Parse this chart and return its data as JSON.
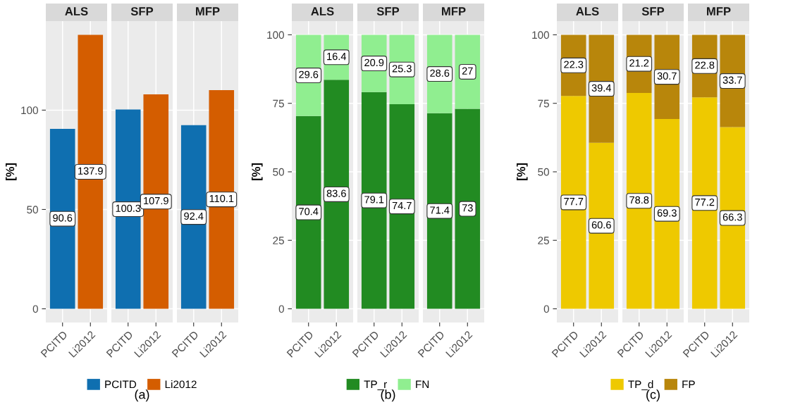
{
  "chart_data": [
    {
      "type": "bar",
      "title": "ALS",
      "ylabel": "[%]",
      "categories": [
        "PCITD",
        "Li2012"
      ],
      "ylim": [
        -6.9,
        144.8
      ],
      "yticks": [
        0,
        50,
        100
      ],
      "grid": true,
      "data_labels": true,
      "series": [
        {
          "color": "#0f6fb0",
          "values": [
            90.6,
            null
          ]
        },
        {
          "color": "#d45d00",
          "values": [
            null,
            137.9
          ]
        }
      ]
    },
    {
      "type": "bar",
      "title": "SFP",
      "categories": [
        "PCITD",
        "Li2012"
      ],
      "ylim": [
        -6.9,
        144.8
      ],
      "yticks": [
        0,
        50,
        100
      ],
      "tick_labels": "x",
      "grid": true,
      "data_labels": true,
      "legend": "bottom",
      "annotations": [
        "(a)"
      ],
      "series": [
        {
          "name": "PCITD",
          "color": "#0f6fb0",
          "values": [
            100.3,
            null
          ]
        },
        {
          "name": "Li2012",
          "color": "#d45d00",
          "values": [
            null,
            107.9
          ]
        }
      ]
    },
    {
      "type": "bar",
      "title": "MFP",
      "categories": [
        "PCITD",
        "Li2012"
      ],
      "ylim": [
        -6.9,
        144.8
      ],
      "yticks": [
        0,
        50,
        100
      ],
      "tick_labels": "x",
      "grid": true,
      "data_labels": true,
      "series": [
        {
          "color": "#0f6fb0",
          "values": [
            92.4,
            null
          ]
        },
        {
          "color": "#d45d00",
          "values": [
            null,
            110.1
          ]
        }
      ]
    },
    {
      "type": "bar",
      "title": "ALS",
      "ylabel": "[%]",
      "categories": [
        "PCITD",
        "Li2012"
      ],
      "ylim": [
        -5,
        105
      ],
      "yticks": [
        0,
        25,
        50,
        75,
        100
      ],
      "grid": true,
      "data_labels": true,
      "stacked": true,
      "series": [
        {
          "color": "#228b22",
          "values": [
            70.4,
            83.6
          ]
        },
        {
          "color": "#90ee90",
          "values": [
            29.6,
            16.4
          ]
        }
      ]
    },
    {
      "type": "bar",
      "title": "SFP",
      "categories": [
        "PCITD",
        "Li2012"
      ],
      "ylim": [
        -5,
        105
      ],
      "yticks": [
        0,
        25,
        50,
        75,
        100
      ],
      "tick_labels": "x",
      "grid": true,
      "data_labels": true,
      "stacked": true,
      "legend": "bottom",
      "annotations": [
        "(b)"
      ],
      "series": [
        {
          "name": "TP_r",
          "color": "#228b22",
          "values": [
            79.1,
            74.7
          ]
        },
        {
          "name": "FN",
          "color": "#90ee90",
          "values": [
            20.9,
            25.3
          ]
        }
      ]
    },
    {
      "type": "bar",
      "title": "MFP",
      "categories": [
        "PCITD",
        "Li2012"
      ],
      "ylim": [
        -5,
        105
      ],
      "yticks": [
        0,
        25,
        50,
        75,
        100
      ],
      "tick_labels": "x",
      "grid": true,
      "data_labels": true,
      "stacked": true,
      "series": [
        {
          "color": "#228b22",
          "values": [
            71.4,
            73
          ]
        },
        {
          "color": "#90ee90",
          "values": [
            28.6,
            27
          ]
        }
      ]
    },
    {
      "type": "bar",
      "title": "ALS",
      "ylabel": "[%]",
      "categories": [
        "PCITD",
        "Li2012"
      ],
      "ylim": [
        -5,
        105
      ],
      "yticks": [
        0,
        25,
        50,
        75,
        100
      ],
      "grid": true,
      "data_labels": true,
      "stacked": true,
      "series": [
        {
          "color": "#eec900",
          "values": [
            77.7,
            60.6
          ]
        },
        {
          "color": "#b8860b",
          "values": [
            22.3,
            39.4
          ]
        }
      ]
    },
    {
      "type": "bar",
      "title": "SFP",
      "categories": [
        "PCITD",
        "Li2012"
      ],
      "ylim": [
        -5,
        105
      ],
      "yticks": [
        0,
        25,
        50,
        75,
        100
      ],
      "tick_labels": "x",
      "grid": true,
      "data_labels": true,
      "stacked": true,
      "legend": "bottom",
      "annotations": [
        "(c)"
      ],
      "series": [
        {
          "name": "TP_d",
          "color": "#eec900",
          "values": [
            78.8,
            69.3
          ]
        },
        {
          "name": "FP",
          "color": "#b8860b",
          "values": [
            21.2,
            30.7
          ]
        }
      ]
    },
    {
      "type": "bar",
      "title": "MFP",
      "categories": [
        "PCITD",
        "Li2012"
      ],
      "ylim": [
        -5,
        105
      ],
      "yticks": [
        0,
        25,
        50,
        75,
        100
      ],
      "tick_labels": "x",
      "grid": true,
      "data_labels": true,
      "stacked": true,
      "series": [
        {
          "color": "#eec900",
          "values": [
            77.2,
            66.3
          ]
        },
        {
          "color": "#b8860b",
          "values": [
            22.8,
            33.7
          ]
        }
      ]
    }
  ]
}
